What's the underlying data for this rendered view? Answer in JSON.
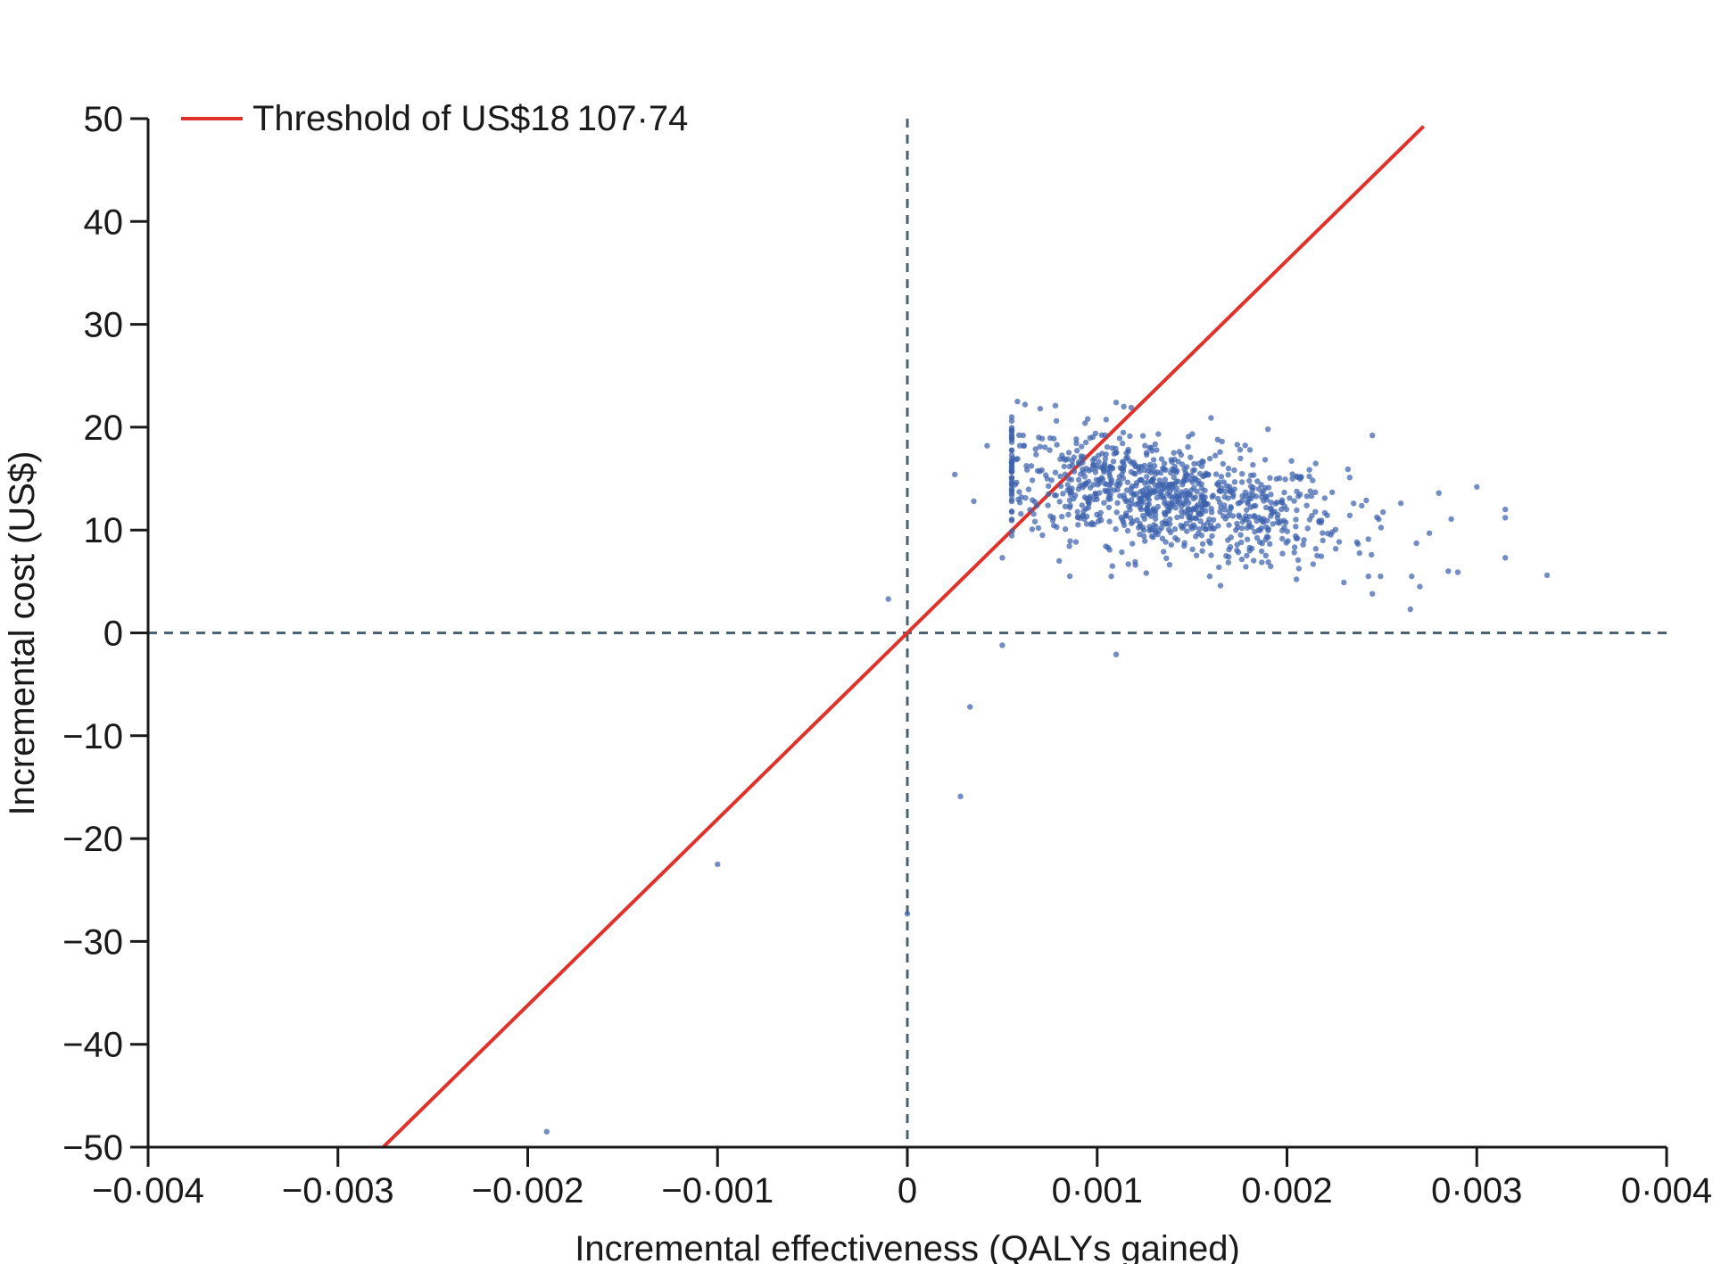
{
  "chart_data": {
    "type": "scatter",
    "xlabel": "Incremental effectiveness (QALYs gained)",
    "ylabel": "Incremental cost (US$)",
    "xlim": [
      -0.004,
      0.004
    ],
    "ylim": [
      -50,
      50
    ],
    "x_ticks": [
      -0.004,
      -0.003,
      -0.002,
      -0.001,
      0,
      0.001,
      0.002,
      0.003,
      0.004
    ],
    "x_tick_labels": [
      "−0·004",
      "−0·003",
      "−0·002",
      "−0·001",
      "0",
      "0·001",
      "0·002",
      "0·003",
      "0·004"
    ],
    "y_ticks": [
      50,
      40,
      30,
      20,
      10,
      0,
      -10,
      -20,
      -30,
      -40,
      -50
    ],
    "y_tick_labels": [
      "50",
      "40",
      "30",
      "20",
      "10",
      "0",
      "−10",
      "−20",
      "−30",
      "−40",
      "−50"
    ],
    "reference_lines": {
      "x": 0,
      "y": 0,
      "style": "dashed"
    },
    "threshold": {
      "label": "Threshold of US$18 107·74",
      "slope": 18107.74,
      "color": "#e0322a",
      "x_range": [
        -0.00276,
        0.00272
      ]
    },
    "legend": {
      "position": "top-left"
    },
    "point_color": "#3d63ad",
    "cloud": {
      "description": "probabilistic sensitivity analysis iterations",
      "n": 950,
      "mean_x": 0.00135,
      "mean_y": 13.2,
      "sd_x": 0.00048,
      "sd_y": 3.0,
      "correlation": -0.45
    },
    "points": [
      [
        0.00025,
        15.4
      ],
      [
        0.00035,
        12.8
      ],
      [
        0.00042,
        18.2
      ],
      [
        0.0005,
        7.3
      ],
      [
        0.00058,
        22.5
      ],
      [
        0.00062,
        22.2
      ],
      [
        0.0007,
        21.8
      ],
      [
        0.00078,
        22.1
      ],
      [
        0.0008,
        7.0
      ],
      [
        0.00095,
        20.8
      ],
      [
        0.0011,
        22.4
      ],
      [
        0.00118,
        21.9
      ],
      [
        0.0016,
        20.9
      ],
      [
        0.0019,
        19.8
      ],
      [
        0.00245,
        19.2
      ],
      [
        0.00265,
        2.3
      ],
      [
        0.0027,
        4.5
      ],
      [
        0.00285,
        6.0
      ],
      [
        0.0029,
        5.9
      ],
      [
        0.003,
        14.2
      ],
      [
        0.00315,
        12.0
      ],
      [
        0.00315,
        11.2
      ],
      [
        0.00315,
        7.3
      ],
      [
        0.00337,
        5.6
      ],
      [
        0.00245,
        3.8
      ],
      [
        0.00275,
        9.7
      ],
      [
        0.0028,
        13.6
      ],
      [
        0.0026,
        12.6
      ],
      [
        0.00205,
        5.2
      ],
      [
        0.0023,
        4.9
      ],
      [
        0.00165,
        4.6
      ],
      [
        0.00108,
        6.5
      ],
      [
        0.00135,
        7.9
      ],
      [
        0.0012,
        6.9
      ],
      [
        -0.0001,
        3.3
      ],
      [
        0.0005,
        -1.2
      ],
      [
        0.0011,
        -2.1
      ],
      [
        0.00033,
        -7.2
      ],
      [
        0.00028,
        -15.9
      ],
      [
        -0.001,
        -22.5
      ],
      [
        0.0,
        -27.3
      ],
      [
        -0.0019,
        -48.5
      ]
    ]
  }
}
